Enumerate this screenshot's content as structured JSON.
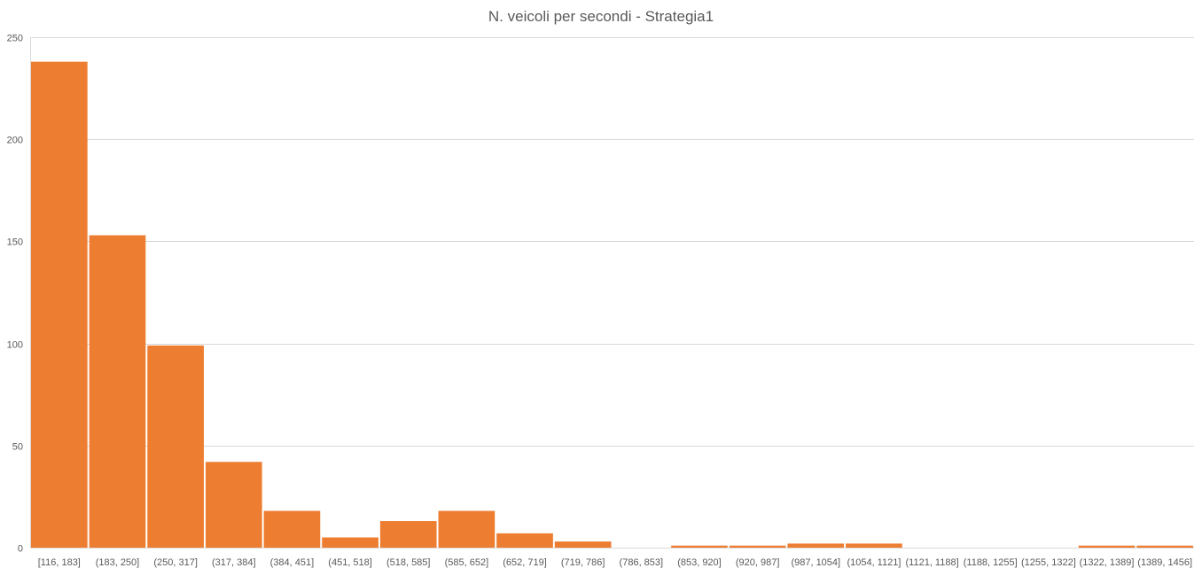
{
  "chart_data": {
    "type": "bar",
    "title": "N. veicoli per secondi - Strategia1",
    "xlabel": "",
    "ylabel": "",
    "categories": [
      "[116, 183]",
      "(183, 250]",
      "(250, 317]",
      "(317, 384]",
      "(384, 451]",
      "(451, 518]",
      "(518, 585]",
      "(585, 652]",
      "(652, 719]",
      "(719, 786]",
      "(786, 853]",
      "(853, 920]",
      "(920, 987]",
      "(987, 1054]",
      "(1054, 1121]",
      "(1121, 1188]",
      "(1188, 1255]",
      "(1255, 1322]",
      "(1322, 1389]",
      "(1389, 1456]"
    ],
    "values": [
      238,
      153,
      99,
      42,
      18,
      5,
      13,
      18,
      7,
      3,
      0,
      1,
      1,
      2,
      2,
      0,
      0,
      0,
      1,
      1
    ],
    "ylim": [
      0,
      250
    ],
    "yticks": [
      0,
      50,
      100,
      150,
      200,
      250
    ],
    "grid": true,
    "legend": "none",
    "bar_color": "#ED7D31",
    "grid_color": "#D9D9D9"
  }
}
